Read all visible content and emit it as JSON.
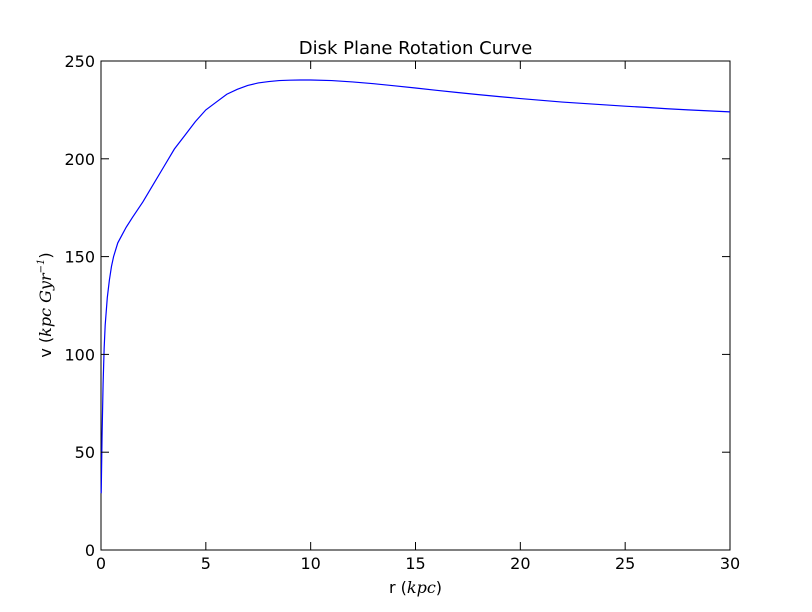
{
  "chart_data": {
    "type": "line",
    "title": "Disk Plane Rotation Curve",
    "xlabel": {
      "prefix": "r (",
      "math": "kpc",
      "suffix": ")"
    },
    "ylabel": {
      "prefix": "v (",
      "math": "kpc Gyr",
      "superscript": "−1",
      "suffix": ")"
    },
    "xlim": [
      0,
      30
    ],
    "ylim": [
      0,
      250
    ],
    "x_ticks": [
      0,
      5,
      10,
      15,
      20,
      25,
      30
    ],
    "y_ticks": [
      0,
      50,
      100,
      150,
      200,
      250
    ],
    "x_tick_labels": [
      "0",
      "5",
      "10",
      "15",
      "20",
      "25",
      "30"
    ],
    "y_tick_labels": [
      "0",
      "50",
      "100",
      "150",
      "200",
      "250"
    ],
    "grid": false,
    "series": [
      {
        "color": "#0000ff",
        "x": [
          0.01,
          0.05,
          0.1,
          0.15,
          0.2,
          0.3,
          0.4,
          0.5,
          0.6,
          0.8,
          1.0,
          1.2,
          1.5,
          2.0,
          2.5,
          3.0,
          3.5,
          4.0,
          4.5,
          5.0,
          5.5,
          6.0,
          6.5,
          7.0,
          7.5,
          8.0,
          8.5,
          9.0,
          9.5,
          10.0,
          11.0,
          12.0,
          13.0,
          14.0,
          15.0,
          16.0,
          17.0,
          18.0,
          19.0,
          20.0,
          21.0,
          22.0,
          23.0,
          24.0,
          25.0,
          26.0,
          27.0,
          28.0,
          29.0,
          30.0
        ],
        "y": [
          29,
          58,
          85,
          103,
          115,
          129,
          138,
          145,
          150,
          157,
          161,
          165,
          170,
          178,
          187,
          196,
          205,
          212,
          219,
          225,
          229,
          233,
          235.5,
          237.5,
          238.8,
          239.5,
          240,
          240.2,
          240.3,
          240.3,
          240,
          239.3,
          238.4,
          237.3,
          236.2,
          235,
          233.9,
          232.8,
          231.8,
          230.8,
          229.9,
          229,
          228.3,
          227.6,
          226.9,
          226.3,
          225.6,
          225,
          224.5,
          224
        ]
      }
    ]
  }
}
